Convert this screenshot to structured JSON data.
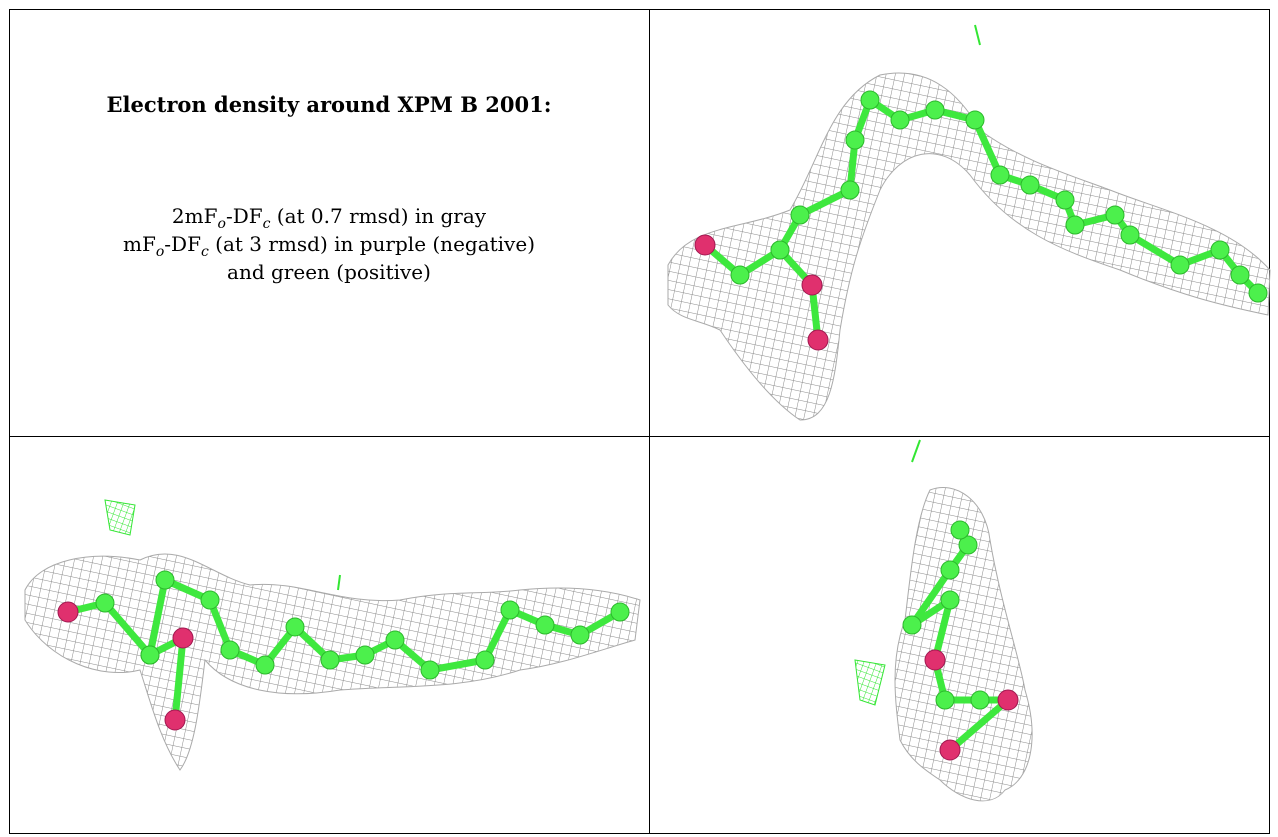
{
  "header": {
    "title": "Electron density around XPM B 2001:"
  },
  "legend": {
    "lines": [
      [
        "2mF",
        "o",
        "-DF",
        "c",
        " (at 0.7 rmsd) in gray"
      ],
      [
        "mF",
        "o",
        "-DF",
        "c",
        " (at 3 rmsd) in purple (negative)"
      ],
      [
        "and green (positive)"
      ]
    ]
  }
}
